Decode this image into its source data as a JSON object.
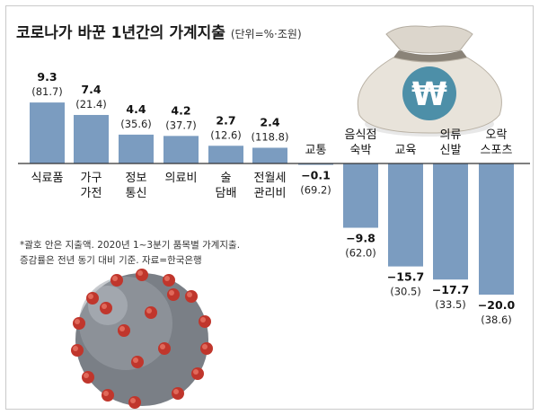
{
  "title": "코로나가 바꾼 1년간의 가계지출",
  "unit": "(단위=%·조원)",
  "notes": [
    "*괄호 안은 지출액. 2020년 1~3분기 품목별 가계지출.",
    "증감률은 전년 동기 대비 기준. 자료=한국은행"
  ],
  "colors": {
    "bar": "#7b9cc0",
    "baseline": "#333333",
    "text": "#222222"
  },
  "chart_data": {
    "type": "bar",
    "categories": [
      [
        "식료품"
      ],
      [
        "가구",
        "가전"
      ],
      [
        "정보",
        "통신"
      ],
      [
        "의료비"
      ],
      [
        "술",
        "담배"
      ],
      [
        "전월세",
        "관리비"
      ],
      [
        "교통"
      ],
      [
        "음식점",
        "숙박"
      ],
      [
        "교육"
      ],
      [
        "의류",
        "신발"
      ],
      [
        "오락",
        "스포츠"
      ]
    ],
    "values": [
      9.3,
      7.4,
      4.4,
      4.2,
      2.7,
      2.4,
      -0.1,
      -9.8,
      -15.7,
      -17.7,
      -20.0
    ],
    "value_labels": [
      "9.3",
      "7.4",
      "4.4",
      "4.2",
      "2.7",
      "2.4",
      "−0.1",
      "−9.8",
      "−15.7",
      "−17.7",
      "−20.0"
    ],
    "spending_labels": [
      "(81.7)",
      "(21.4)",
      "(35.6)",
      "(37.7)",
      "(12.6)",
      "(118.8)",
      "(69.2)",
      "(62.0)",
      "(30.5)",
      "(33.5)",
      "(38.6)"
    ],
    "ylim": [
      -20,
      9.3
    ]
  }
}
